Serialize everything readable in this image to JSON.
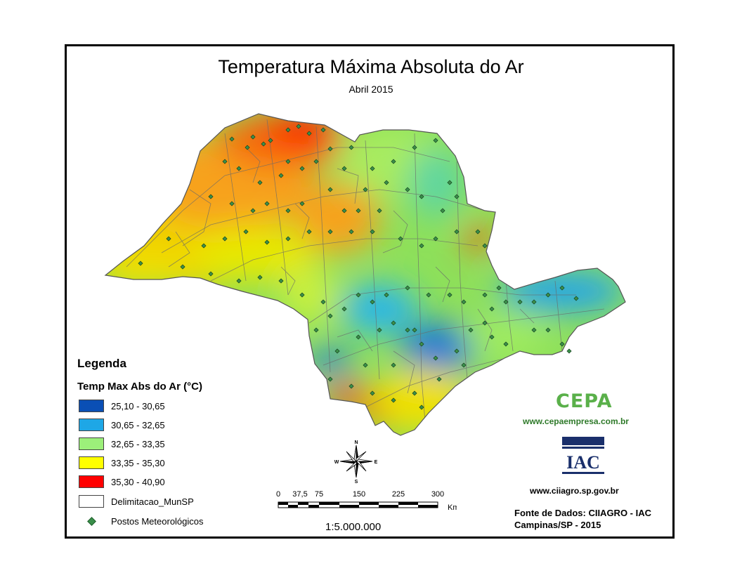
{
  "title": "Temperatura Máxima Absoluta do Ar",
  "subtitle": "Abril 2015",
  "legend": {
    "heading": "Legenda",
    "variable": "Temp Max Abs do Ar (°C)",
    "classes": [
      {
        "label": "25,10 - 30,65",
        "color": "#0a4fb5"
      },
      {
        "label": "30,65 - 32,65",
        "color": "#1ea7e6"
      },
      {
        "label": "32,65 - 33,35",
        "color": "#9cf07a"
      },
      {
        "label": "33,35 - 35,30",
        "color": "#ffff00"
      },
      {
        "label": "35,30 - 40,90",
        "color": "#ff0000"
      }
    ],
    "boundary_label": "Delimitacao_MunSP",
    "stations_label": "Postos Meteorológicos"
  },
  "compass": {
    "n": "N",
    "s": "S",
    "e": "E",
    "w": "W"
  },
  "scalebar": {
    "ticks": [
      "0",
      "37,5",
      "75",
      "150",
      "225",
      "300"
    ],
    "unit": "Km",
    "ratio": "1:5.000.000"
  },
  "logos": {
    "cepa_text": "CEPA",
    "cepa_url": "www.cepaempresa.com.br",
    "iac_text": "IAC",
    "iac_url": "www.ciiagro.sp.gov.br"
  },
  "source": {
    "line1": "Fonte de Dados: CIIAGRO - IAC",
    "line2": "Campinas/SP - 2015"
  },
  "colors": {
    "map_blue": "#0a4fb5",
    "map_cyan": "#1ea7e6",
    "map_green": "#4fd04f",
    "map_yellow": "#ffff00",
    "map_orange": "#f7a21b",
    "map_red": "#ff0000",
    "station": "#3a8f4a"
  }
}
